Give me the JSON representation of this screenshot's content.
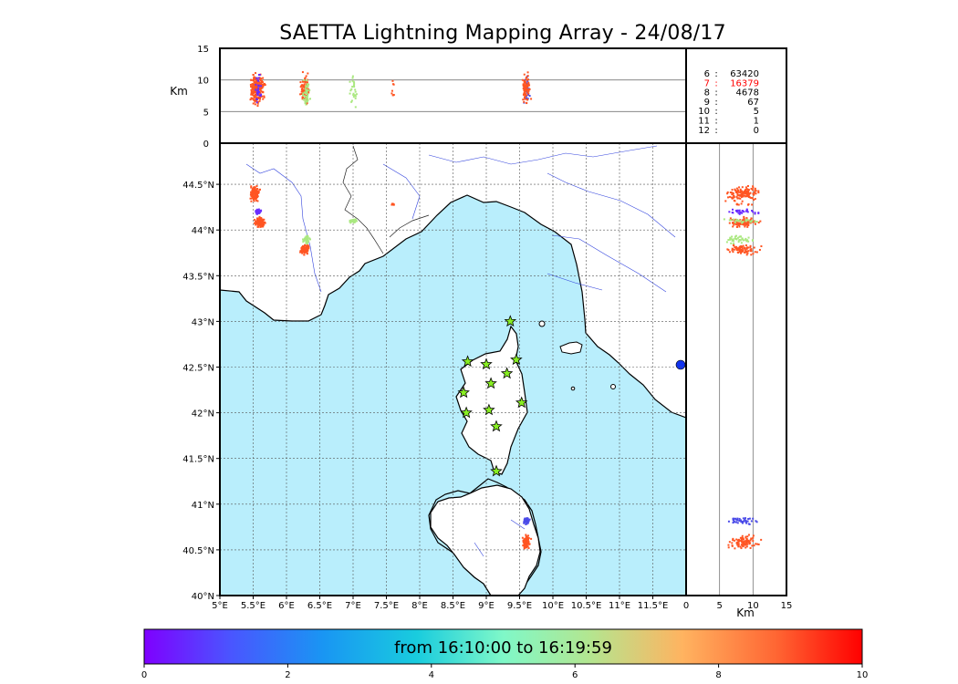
{
  "title": "SAETTA Lightning Mapping Array - 24/08/17",
  "colors": {
    "sea": "#b9eefc",
    "grid": "#555555",
    "river": "#3344dd",
    "station_fill": "#88ee22",
    "highlight": "#ff0000"
  },
  "chart_data": {
    "type": "scatter",
    "station_count_table": {
      "rows": [
        {
          "stations": "6",
          "count": "63420",
          "highlight": false
        },
        {
          "stations": "7",
          "count": "16379",
          "highlight": true
        },
        {
          "stations": "8",
          "count": "4678",
          "highlight": false
        },
        {
          "stations": "9",
          "count": "67",
          "highlight": false
        },
        {
          "stations": "10",
          "count": "5",
          "highlight": false
        },
        {
          "stations": "11",
          "count": "1",
          "highlight": false
        },
        {
          "stations": "12",
          "count": "0",
          "highlight": false
        }
      ]
    },
    "map": {
      "xlim": [
        5.0,
        12.0
      ],
      "ylim": [
        40.0,
        44.95
      ],
      "x_ticks": [
        5.0,
        5.5,
        6.0,
        6.5,
        7.0,
        7.5,
        8.0,
        8.5,
        9.0,
        9.5,
        10.0,
        10.5,
        11.0,
        11.5
      ],
      "x_tick_labels": [
        "5°E",
        "5.5°E",
        "6°E",
        "6.5°E",
        "7°E",
        "7.5°E",
        "8°E",
        "8.5°E",
        "9°E",
        "9.5°E",
        "10°E",
        "10.5°E",
        "11°E",
        "11.5°E"
      ],
      "y_ticks": [
        40.0,
        40.5,
        41.0,
        41.5,
        42.0,
        42.5,
        43.0,
        43.5,
        44.0,
        44.5
      ],
      "y_tick_labels": [
        "40°N",
        "40.5°N",
        "41°N",
        "41.5°N",
        "42°N",
        "42.5°N",
        "43°N",
        "43.5°N",
        "44°N",
        "44.5°N"
      ],
      "grid": true,
      "stations": [
        {
          "lon": 9.36,
          "lat": 43.0
        },
        {
          "lon": 8.72,
          "lat": 42.56
        },
        {
          "lon": 9.0,
          "lat": 42.53
        },
        {
          "lon": 9.45,
          "lat": 42.58
        },
        {
          "lon": 9.31,
          "lat": 42.43
        },
        {
          "lon": 9.07,
          "lat": 42.32
        },
        {
          "lon": 8.66,
          "lat": 42.22
        },
        {
          "lon": 9.53,
          "lat": 42.11
        },
        {
          "lon": 8.7,
          "lat": 42.0
        },
        {
          "lon": 9.04,
          "lat": 42.03
        },
        {
          "lon": 9.15,
          "lat": 41.85
        },
        {
          "lon": 9.15,
          "lat": 41.36
        }
      ],
      "clusters": [
        {
          "lon": 5.52,
          "lat": 44.4,
          "spread_lon": 0.1,
          "spread_lat": 0.1,
          "color": "#ff5522",
          "n": 120
        },
        {
          "lon": 5.6,
          "lat": 44.08,
          "spread_lon": 0.1,
          "spread_lat": 0.08,
          "color": "#ff5522",
          "n": 90
        },
        {
          "lon": 5.58,
          "lat": 44.2,
          "spread_lon": 0.06,
          "spread_lat": 0.04,
          "color": "#6a2cff",
          "n": 30
        },
        {
          "lon": 6.28,
          "lat": 43.78,
          "spread_lon": 0.1,
          "spread_lat": 0.08,
          "color": "#ff5522",
          "n": 80
        },
        {
          "lon": 6.3,
          "lat": 43.9,
          "spread_lon": 0.08,
          "spread_lat": 0.06,
          "color": "#aae880",
          "n": 40
        },
        {
          "lon": 7.0,
          "lat": 44.1,
          "spread_lon": 0.07,
          "spread_lat": 0.03,
          "color": "#aae880",
          "n": 25
        },
        {
          "lon": 7.6,
          "lat": 44.28,
          "spread_lon": 0.03,
          "spread_lat": 0.02,
          "color": "#ff5522",
          "n": 8
        },
        {
          "lon": 9.6,
          "lat": 40.82,
          "spread_lon": 0.06,
          "spread_lat": 0.06,
          "color": "#4a4ae8",
          "n": 40
        },
        {
          "lon": 9.6,
          "lat": 40.58,
          "spread_lon": 0.08,
          "spread_lat": 0.12,
          "color": "#ff5522",
          "n": 90
        }
      ]
    },
    "top_panel": {
      "ylim": [
        0,
        15
      ],
      "y_ticks": [
        0,
        5,
        10,
        15
      ],
      "ylabel": "Km"
    },
    "right_panel": {
      "xlim": [
        0,
        15
      ],
      "x_ticks": [
        0,
        5,
        10,
        15
      ],
      "xlabel": "Km"
    },
    "colorbar": {
      "range": [
        0,
        10
      ],
      "ticks": [
        0,
        2,
        4,
        6,
        8,
        10
      ],
      "caption": "from 16:10:00 to 16:19:59"
    }
  }
}
